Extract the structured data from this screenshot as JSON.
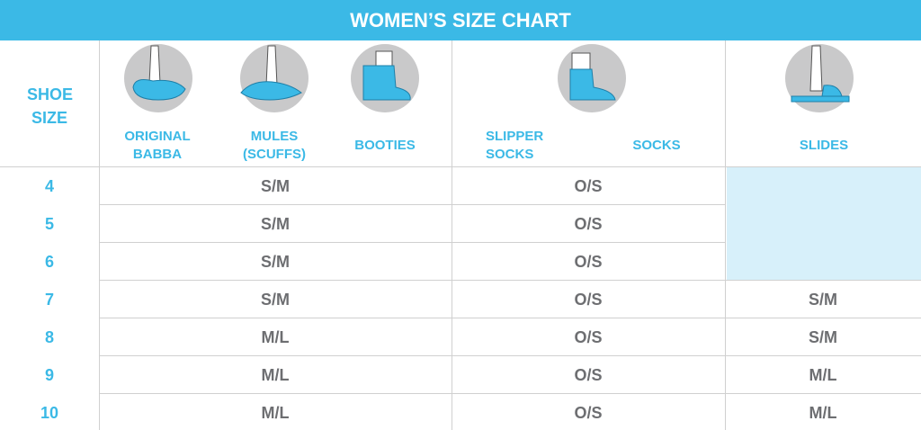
{
  "title": "WOMEN’S SIZE CHART",
  "header": {
    "size_label": "SHOE SIZE",
    "columns": [
      "ORIGINAL BABBA",
      "MULES (SCUFFS)",
      "BOOTIES",
      "SLIPPER SOCKS",
      "SOCKS",
      "SLIDES"
    ]
  },
  "table": {
    "rows": [
      {
        "size": 4,
        "slippers": "S/M",
        "socks": "O/S"
      },
      {
        "size": 5,
        "slippers": "S/M",
        "socks": "O/S"
      },
      {
        "size": 6,
        "slippers": "S/M",
        "socks": "O/S"
      },
      {
        "size": 7,
        "slippers": "S/M",
        "socks": "O/S",
        "slides": "S/M"
      },
      {
        "size": 8,
        "slippers": "M/L",
        "socks": "O/S",
        "slides": "S/M"
      },
      {
        "size": 9,
        "slippers": "M/L",
        "socks": "O/S",
        "slides": "M/L"
      },
      {
        "size": 10,
        "slippers": "M/L",
        "socks": "O/S",
        "slides": "M/L"
      }
    ]
  }
}
